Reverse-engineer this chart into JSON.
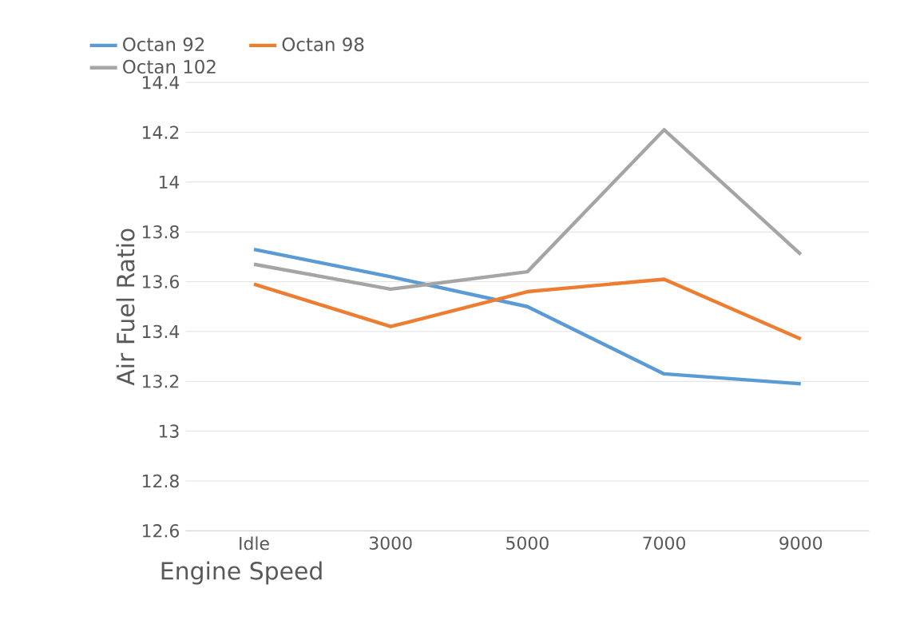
{
  "chart_data": {
    "type": "line",
    "xlabel": "Engine Speed",
    "ylabel": "Air Fuel Ratio",
    "categories": [
      "Idle",
      "3000",
      "5000",
      "7000",
      "9000"
    ],
    "series": [
      {
        "name": "Octan 92",
        "color": "#5b9bd5",
        "values": [
          13.73,
          13.62,
          13.5,
          13.23,
          13.19
        ]
      },
      {
        "name": "Octan 98",
        "color": "#ed7d31",
        "values": [
          13.59,
          13.42,
          13.56,
          13.61,
          13.37
        ]
      },
      {
        "name": "Octan 102",
        "color": "#a5a5a5",
        "values": [
          13.67,
          13.57,
          13.64,
          14.21,
          13.71
        ]
      }
    ],
    "ylim": [
      12.6,
      14.4
    ],
    "yticks": [
      {
        "value": 12.6,
        "label": "12.6"
      },
      {
        "value": 12.8,
        "label": "12.8"
      },
      13,
      {
        "value": 13.2,
        "label": "13.2"
      },
      {
        "value": 13.4,
        "label": "13.4"
      },
      {
        "value": 13.6,
        "label": "13.6"
      },
      {
        "value": 13.8,
        "label": "13.8"
      },
      14,
      {
        "value": 14.2,
        "label": "14.2"
      },
      {
        "value": 14.4,
        "label": "14.4"
      }
    ],
    "grid": "y",
    "legend": "top left",
    "marker": "none",
    "line_style": "solid"
  }
}
